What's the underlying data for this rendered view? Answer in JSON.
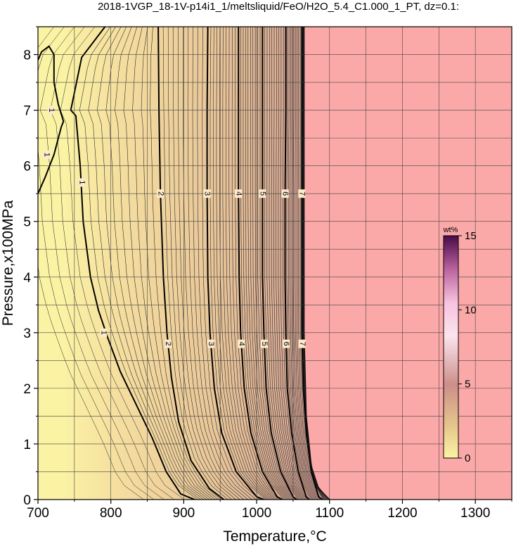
{
  "chart_data": {
    "type": "contour",
    "title": "2018-1VGP_18-1V-p14i1_1/meltsliquid/FeO/H2O_5.4_C1.000_1_PT, dz=0.1:",
    "xlabel": "Temperature,°C",
    "ylabel": "Pressure,x100MPa",
    "xlim": [
      700,
      1350
    ],
    "ylim": [
      0,
      8.5
    ],
    "xticks": [
      "700",
      "800",
      "900",
      "1000",
      "1100",
      "1200",
      "1300"
    ],
    "yticks": [
      "0",
      "1",
      "2",
      "3",
      "4",
      "5",
      "6",
      "7",
      "8"
    ],
    "grid": true,
    "contour_interval": 0.1,
    "colorbar": {
      "unit": "wt%",
      "ticks": [
        "0",
        "5",
        "10",
        "15"
      ],
      "range": [
        0,
        15
      ],
      "placement": "right-inside"
    },
    "colors": {
      "low": "#fbf3a4",
      "mid": "#e6c89a",
      "high": "#c79490",
      "no_melt_region": "#fba9a8",
      "colorbar_top": "#4a0a4a"
    },
    "liquidus_boundary": [
      {
        "T": 1065,
        "P": 8.5
      },
      {
        "T": 1065,
        "P": 3.0
      },
      {
        "T": 1068,
        "P": 1.5
      },
      {
        "T": 1075,
        "P": 0.6
      },
      {
        "T": 1085,
        "P": 0.2
      },
      {
        "T": 1100,
        "P": 0.0
      }
    ],
    "major_contours": [
      {
        "value": 1,
        "labels": [
          "1",
          "1",
          "1",
          "1"
        ],
        "points": [
          [
            700,
            7.9
          ],
          [
            705,
            8.05
          ],
          [
            715,
            8.15
          ],
          [
            722,
            8.0
          ],
          [
            722,
            7.5
          ],
          [
            728,
            7.1
          ],
          [
            735,
            6.8
          ],
          [
            732,
            6.7
          ],
          [
            722,
            6.2
          ],
          [
            710,
            5.8
          ],
          [
            700,
            5.5
          ]
        ]
      },
      {
        "value": 1,
        "labels": [],
        "points": [
          [
            792,
            8.5
          ],
          [
            760,
            7.95
          ],
          [
            745,
            7.0
          ],
          [
            752,
            6.9
          ],
          [
            758,
            6.0
          ],
          [
            762,
            5.0
          ],
          [
            772,
            4.0
          ],
          [
            783,
            3.4
          ],
          [
            796,
            2.9
          ],
          [
            813,
            2.3
          ],
          [
            835,
            1.7
          ],
          [
            857,
            1.1
          ],
          [
            876,
            0.5
          ],
          [
            896,
            0.1
          ],
          [
            915,
            0.0
          ]
        ]
      },
      {
        "value": 2,
        "labels": [
          "2",
          "2"
        ],
        "points": [
          [
            865,
            8.5
          ],
          [
            866,
            7.0
          ],
          [
            868,
            5.5
          ],
          [
            872,
            4.0
          ],
          [
            877,
            3.0
          ],
          [
            883,
            2.2
          ],
          [
            893,
            1.4
          ],
          [
            910,
            0.7
          ],
          [
            935,
            0.2
          ],
          [
            955,
            0.0
          ]
        ]
      },
      {
        "value": 3,
        "labels": [
          "3",
          "3"
        ],
        "points": [
          [
            933,
            8.5
          ],
          [
            932,
            7.0
          ],
          [
            932,
            5.5
          ],
          [
            933,
            4.0
          ],
          [
            936,
            3.0
          ],
          [
            942,
            2.0
          ],
          [
            952,
            1.2
          ],
          [
            972,
            0.5
          ],
          [
            1000,
            0.05
          ],
          [
            1010,
            0.0
          ]
        ]
      },
      {
        "value": 4,
        "labels": [
          "4",
          "4"
        ],
        "points": [
          [
            975,
            8.5
          ],
          [
            975,
            7.0
          ],
          [
            975,
            5.5
          ],
          [
            976,
            4.0
          ],
          [
            978,
            3.0
          ],
          [
            983,
            2.0
          ],
          [
            992,
            1.2
          ],
          [
            1008,
            0.5
          ],
          [
            1028,
            0.05
          ],
          [
            1035,
            0.0
          ]
        ]
      },
      {
        "value": 5,
        "labels": [
          "5",
          "5"
        ],
        "points": [
          [
            1008,
            8.5
          ],
          [
            1008,
            7.0
          ],
          [
            1008,
            5.5
          ],
          [
            1008,
            4.0
          ],
          [
            1010,
            3.0
          ],
          [
            1013,
            2.0
          ],
          [
            1020,
            1.2
          ],
          [
            1033,
            0.5
          ],
          [
            1050,
            0.05
          ],
          [
            1055,
            0.0
          ]
        ]
      },
      {
        "value": 6,
        "labels": [
          "6",
          "6"
        ],
        "points": [
          [
            1040,
            8.5
          ],
          [
            1040,
            7.0
          ],
          [
            1039,
            5.5
          ],
          [
            1039,
            4.0
          ],
          [
            1040,
            3.0
          ],
          [
            1042,
            2.0
          ],
          [
            1048,
            1.2
          ],
          [
            1057,
            0.5
          ],
          [
            1068,
            0.05
          ],
          [
            1072,
            0.0
          ]
        ]
      },
      {
        "value": 7,
        "labels": [
          "7",
          "7"
        ],
        "points": [
          [
            1062,
            8.5
          ],
          [
            1062,
            7.0
          ],
          [
            1062,
            5.5
          ],
          [
            1062,
            4.0
          ],
          [
            1062,
            3.0
          ],
          [
            1064,
            2.0
          ],
          [
            1068,
            1.2
          ],
          [
            1075,
            0.5
          ],
          [
            1085,
            0.05
          ],
          [
            1090,
            0.0
          ]
        ]
      }
    ]
  }
}
